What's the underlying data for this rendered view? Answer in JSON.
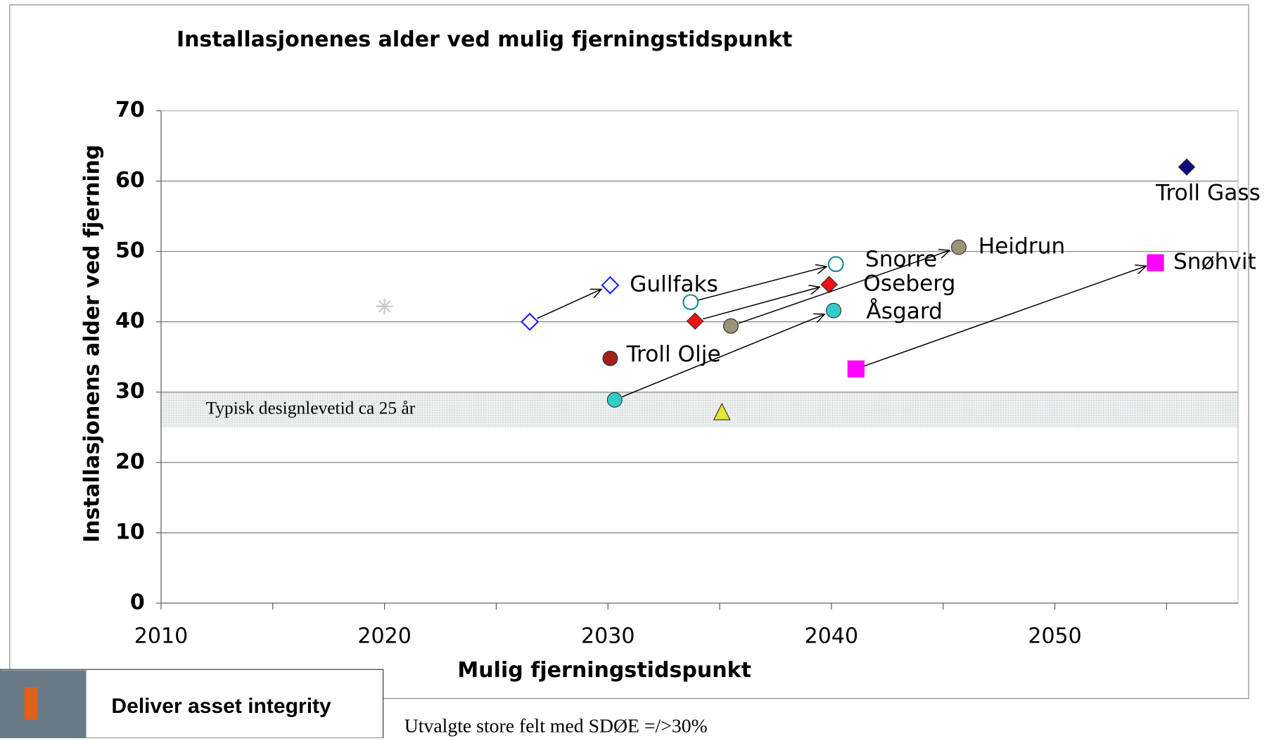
{
  "chart_data": {
    "type": "scatter",
    "title": "Installasjonenes alder ved mulig fjerningstidspunkt",
    "x_label": "Mulig fjerningstidspunkt",
    "y_label": "Installasjonens alder ved fjerning",
    "xlim": [
      2010,
      2058.2
    ],
    "xticks": [
      2010,
      2020,
      2030,
      2040,
      2050
    ],
    "ylim": [
      0,
      70
    ],
    "yticks": [
      0,
      10,
      20,
      30,
      40,
      50,
      60,
      70
    ],
    "grid": true,
    "band": {
      "label": "Typisk designlevetid ca 25 år",
      "range": [
        25,
        30
      ]
    },
    "series": [
      {
        "name": "Gullfaks",
        "color": "#1a1aff",
        "marker": "diamond-open",
        "x": [
          2026.5,
          2030.1
        ],
        "values": [
          40,
          45.2
        ]
      },
      {
        "name": "Snorre",
        "color": "#138a8a",
        "marker": "circle-open",
        "x": [
          2033.7,
          2040.2
        ],
        "values": [
          42.8,
          48.2
        ]
      },
      {
        "name": "Oseberg",
        "color": "#ee1111",
        "marker": "diamond",
        "x": [
          2033.9,
          2039.9
        ],
        "values": [
          40.1,
          45.3
        ]
      },
      {
        "name": "Heidrun",
        "color": "#9a9478",
        "marker": "circle",
        "x": [
          2035.5,
          2045.7
        ],
        "values": [
          39.4,
          50.6
        ]
      },
      {
        "name": "Åsgard",
        "color": "#33cccc",
        "marker": "circle",
        "x": [
          2030.3,
          2040.1
        ],
        "values": [
          28.9,
          41.6
        ]
      },
      {
        "name": "Snøhvit",
        "color": "#ff00ff",
        "marker": "square",
        "x": [
          2041.1,
          2054.5
        ],
        "values": [
          33.3,
          48.4
        ]
      },
      {
        "name": "Troll Olje",
        "color": "#a3201a",
        "marker": "circle",
        "x": [
          2030.1
        ],
        "values": [
          34.8
        ]
      },
      {
        "name": "Troll Gass",
        "color": "#0a0a80",
        "marker": "diamond",
        "x": [
          2055.9
        ],
        "values": [
          62
        ]
      },
      {
        "color": "#e6e630",
        "marker": "triangle",
        "x": [
          2035.1
        ],
        "values": [
          27.1
        ]
      },
      {
        "color": "#cccccc",
        "marker": "asterisk",
        "x": [
          2020
        ],
        "values": [
          42.2
        ]
      }
    ]
  },
  "footer": {
    "banner": "Deliver asset integrity",
    "note": "Utvalgte store felt med SDØE =/>30%"
  }
}
